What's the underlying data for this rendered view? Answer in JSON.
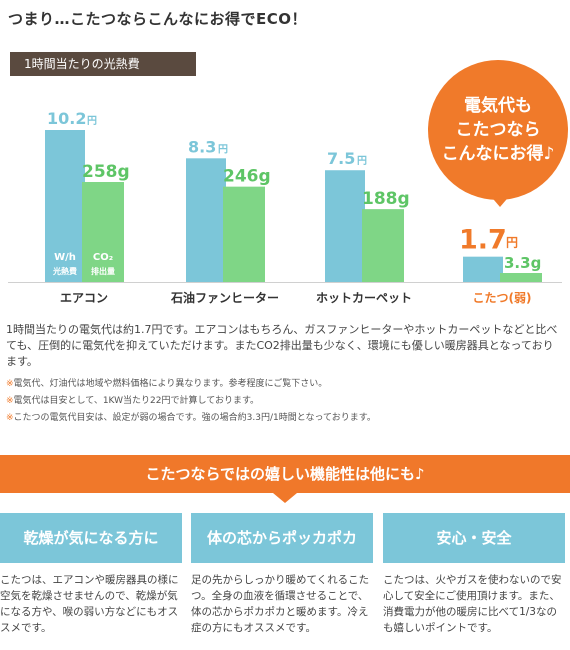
{
  "headline": "つまり…こたつならこんなにお得でECO！",
  "subtag": "1時間当たりの光熱費",
  "callout": [
    "電気代も",
    "こたつなら",
    "こんなにお得♪"
  ],
  "colors": {
    "cost_bar": "#7cc6d9",
    "co2_bar": "#7fd686",
    "cost_text": "#7cc6d9",
    "co2_text": "#5ec566",
    "highlight": "#f07a2a",
    "banner": "#f0782a"
  },
  "chart_data": {
    "type": "bar",
    "categories": [
      "エアコン",
      "石油ファンヒーター",
      "ホットカーペット",
      "こたつ(弱)"
    ],
    "series": [
      {
        "name": "W/h 光熱費",
        "unit": "円",
        "values": [
          10.2,
          8.3,
          7.5,
          1.7
        ]
      },
      {
        "name": "CO₂ 排出量",
        "unit": "g",
        "values": [
          258,
          246,
          188,
          3.3
        ]
      }
    ],
    "value_labels": {
      "cost": [
        "10.2円",
        "8.3円",
        "7.5円",
        "1.7円"
      ],
      "co2": [
        "258g",
        "246g",
        "188g",
        "3.3g"
      ]
    },
    "in_bar_labels": {
      "cost": [
        "W/h",
        "光熱費"
      ],
      "co2": [
        "CO₂",
        "排出量"
      ]
    },
    "highlight_index": 3,
    "grid": false
  },
  "body_text": "1時間当たりの電気代は約1.7円です。エアコンはもちろん、ガスファンヒーターやホットカーペットなどと比べても、圧倒的に電気代を抑えていただけます。またCO2排出量も少なく、環境にも優しい暖房器具となっております。",
  "notes": [
    "電気代、灯油代は地域や燃料価格により異なります。参考程度にご覧下さい。",
    "電気代は目安として、1KW当たり22円で計算しております。",
    "こたつの電気代目安は、設定が弱の場合です。強の場合約3.3円/1時間となっております。"
  ],
  "note_mark": "※",
  "banner": "こたつならではの嬉しい機能性は他にも♪",
  "features": [
    {
      "title": "乾燥が気になる方に",
      "desc": "こたつは、エアコンや暖房器具の様に空気を乾燥させませんので、乾燥が気になる方や、喉の弱い方などにもオススメです。"
    },
    {
      "title": "体の芯からポッカポカ",
      "desc": "足の先からしっかり暖めてくれるこたつ。全身の血液を循環させることで、体の芯からポカポカと暖めます。冷え症の方にもオススメです。"
    },
    {
      "title": "安心・安全",
      "desc": "こたつは、火やガスを使わないので安心して安全にご使用頂けます。また、消費電力が他の暖房に比べて1/3なのも嬉しいポイントです。"
    }
  ]
}
